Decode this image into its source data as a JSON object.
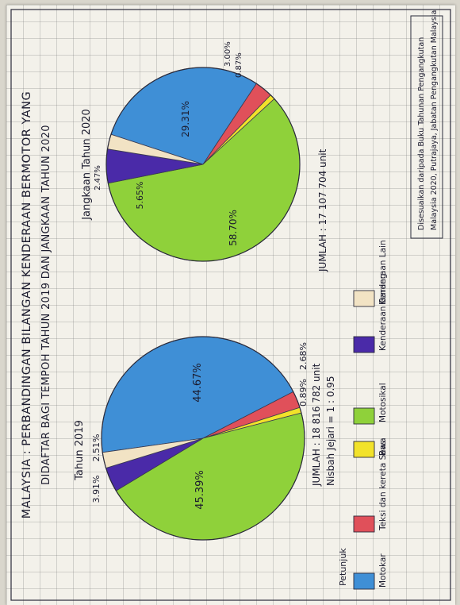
{
  "title_line1": "MALAYSIA : PERBANDINGAN BILANGAN KENDERAAN BERMOTOR YANG",
  "title_line2": "DIDAFTAR BAGI TEMPOH TAHUN 2019 DAN JANGKAAN TAHUN 2020",
  "scale_text": "Nisbah Jejari = 1 : 0.95",
  "legend": {
    "title": "Petunjuk",
    "items": [
      {
        "label": "Motokar",
        "color": "#3f8fd6"
      },
      {
        "label": "Teksi dan kereta Sewa",
        "color": "#e0505a"
      },
      {
        "label": "Bas",
        "color": "#f2e22a"
      },
      {
        "label": "Motosikal",
        "color": "#8fd13a"
      },
      {
        "label": "Kenderaan Barang",
        "color": "#4a2aa8"
      },
      {
        "label": "Kenderaan Lain",
        "color": "#f2e3c4"
      }
    ]
  },
  "source_text_1": "Disesuaikan daripada Buku Tahunan Pengangkutan",
  "source_text_2": "Malaysia 2020, Putrajaya, Jabatan Pengangkutan Malaysia",
  "chart_data": [
    {
      "type": "pie",
      "title": "Tahun 2019",
      "total_text": "JUMLAH : 18 816 782 unit",
      "categories": [
        "Motokar",
        "Teksi dan kereta Sewa",
        "Bas",
        "Motosikal",
        "Kenderaan Barang",
        "Kenderaan Lain"
      ],
      "labels": [
        "44.67%",
        "2.68%",
        "0.89%",
        "45.39%",
        "3.91%",
        "2.51%"
      ],
      "values": [
        44.67,
        2.68,
        0.89,
        45.39,
        3.91,
        2.51
      ]
    },
    {
      "type": "pie",
      "title": "Jangkaan Tahun 2020",
      "total_text": "JUMLAH : 17 107 704 unit",
      "categories": [
        "Motokar",
        "Teksi dan kereta Sewa",
        "Bas",
        "Motosikal",
        "Kenderaan Barang",
        "Kenderaan Lain"
      ],
      "labels": [
        "29.31%",
        "3.00%",
        "0.87%",
        "58.70%",
        "5.65%",
        "2.47%"
      ],
      "values": [
        29.31,
        3.0,
        0.87,
        58.7,
        5.65,
        2.47
      ]
    }
  ]
}
